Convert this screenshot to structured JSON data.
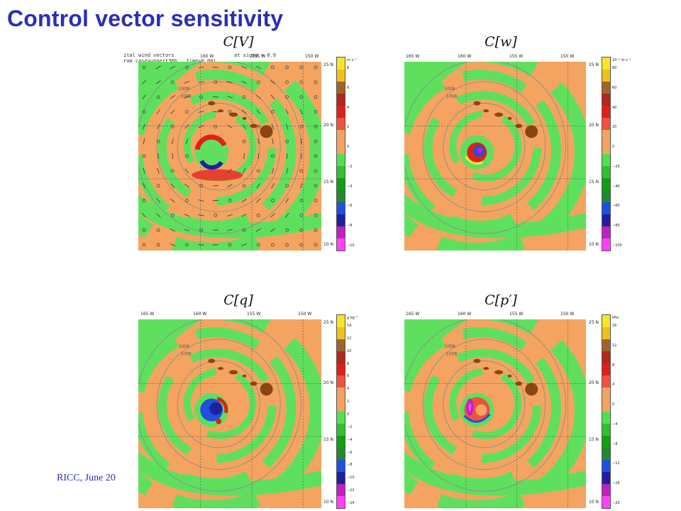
{
  "slide": {
    "title": "Control vector sensitivity",
    "footer": "RICC, June 20"
  },
  "panels": [
    {
      "title": "C[V]",
      "lon_ticks": [
        "160 W",
        "155 W",
        "150 W"
      ],
      "lat_ticks": [
        "25 N",
        "20 N",
        "15 N",
        "10 N"
      ],
      "colorbar_unit": "m s⁻¹",
      "colorbar_labels": [
        "8",
        "6",
        "4",
        "2",
        "0",
        "−2",
        "−4",
        "−6",
        "−8",
        "−10"
      ],
      "annotation_lines": [
        "ital wind vectors",
        "rom case=unpert36h , time=0.00)",
        "at sigma = 0.9"
      ],
      "contour_label": "1008",
      "colorbar_colors": [
        "#f5e62a",
        "#f0c020",
        "#a0642a",
        "#b0281e",
        "#e02018",
        "#f05040",
        "#f4a460",
        "#f4a460",
        "#50e050",
        "#30c030",
        "#10a010",
        "#208a30",
        "#2050e0",
        "#2020a0",
        "#c020c0",
        "#ff40ff"
      ]
    },
    {
      "title": "C[w]",
      "lon_ticks": [
        "165 W",
        "160 W",
        "155 W",
        "150 W"
      ],
      "lat_ticks": [
        "25 N",
        "20 N",
        "15 N",
        "10 N"
      ],
      "colorbar_unit": "10⁻³ m s⁻¹",
      "colorbar_labels": [
        "80",
        "60",
        "40",
        "20",
        "0",
        "−20",
        "−40",
        "−60",
        "−80",
        "−100"
      ],
      "contour_label": "1008",
      "colorbar_colors": [
        "#f5e62a",
        "#f0c020",
        "#a0642a",
        "#b0281e",
        "#e02018",
        "#f05040",
        "#f4a460",
        "#f4a460",
        "#50e050",
        "#30c030",
        "#10a010",
        "#208a30",
        "#2050e0",
        "#2020a0",
        "#c020c0",
        "#ff40ff"
      ]
    },
    {
      "title": "C[q]",
      "lon_ticks": [
        "165 W",
        "160 W",
        "155 W",
        "150 W"
      ],
      "lat_ticks": [
        "25 N",
        "20 N",
        "15 N",
        "10 N"
      ],
      "colorbar_unit": "g kg⁻¹",
      "colorbar_labels": [
        "14",
        "12",
        "10",
        "8",
        "6",
        "4",
        "2",
        "0",
        "−2",
        "−4",
        "−6",
        "−8",
        "−10",
        "−12",
        "−14"
      ],
      "contour_label": "1008",
      "colorbar_colors": [
        "#f5e62a",
        "#f0c020",
        "#a0642a",
        "#b0281e",
        "#e02018",
        "#f05040",
        "#f4a460",
        "#f4a460",
        "#50e050",
        "#30c030",
        "#10a010",
        "#208a30",
        "#2050e0",
        "#2020a0",
        "#c020c0",
        "#ff40ff"
      ]
    },
    {
      "title": "C[p′]",
      "lon_ticks": [
        "165 W",
        "160 W",
        "155 W",
        "150 W"
      ],
      "lat_ticks": [
        "25 N",
        "20 N",
        "15 N",
        "10 N"
      ],
      "colorbar_unit": "hPa",
      "colorbar_labels": [
        "16",
        "12",
        "8",
        "4",
        "0",
        "−4",
        "−8",
        "−12",
        "−16",
        "−20"
      ],
      "contour_label": "1008",
      "colorbar_colors": [
        "#f5e62a",
        "#f0c020",
        "#a0642a",
        "#b0281e",
        "#e02018",
        "#f05040",
        "#f4a460",
        "#f4a460",
        "#50e050",
        "#30c030",
        "#10a010",
        "#208a30",
        "#2050e0",
        "#2020a0",
        "#c020c0",
        "#ff40ff"
      ]
    }
  ]
}
